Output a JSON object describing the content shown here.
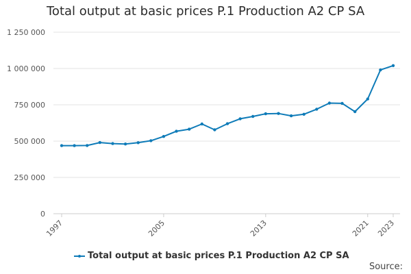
{
  "chart_data": {
    "type": "line",
    "title": "Total output at basic prices P.1 Production A2 CP SA",
    "xlabel": "",
    "ylabel": "",
    "x": [
      1997,
      1998,
      1999,
      2000,
      2001,
      2002,
      2003,
      2004,
      2005,
      2006,
      2007,
      2008,
      2009,
      2010,
      2011,
      2012,
      2013,
      2014,
      2015,
      2016,
      2017,
      2018,
      2019,
      2020,
      2021,
      2022,
      2023
    ],
    "series": [
      {
        "name": "Total output at basic prices P.1 Production A2 CP SA",
        "color": "#0e7bb8",
        "values": [
          469000,
          469000,
          470000,
          490000,
          483000,
          480000,
          489000,
          503000,
          532000,
          568000,
          582000,
          618000,
          578000,
          620000,
          654000,
          670000,
          688000,
          690000,
          674000,
          685000,
          720000,
          762000,
          760000,
          703000,
          790000,
          990000,
          1020000
        ]
      }
    ],
    "xticks": [
      "1997",
      "2005",
      "2013",
      "2021",
      "2023"
    ],
    "yticks": [
      "0",
      "250 000",
      "500 000",
      "750 000",
      "1 000 000",
      "1 250 000"
    ],
    "ytick_values": [
      0,
      250000,
      500000,
      750000,
      1000000,
      1250000
    ],
    "xlim": [
      1997,
      2023
    ],
    "ylim": [
      0,
      1250000
    ],
    "grid": true,
    "legend_position": "bottom"
  },
  "footer": {
    "source_label": "Source:"
  }
}
